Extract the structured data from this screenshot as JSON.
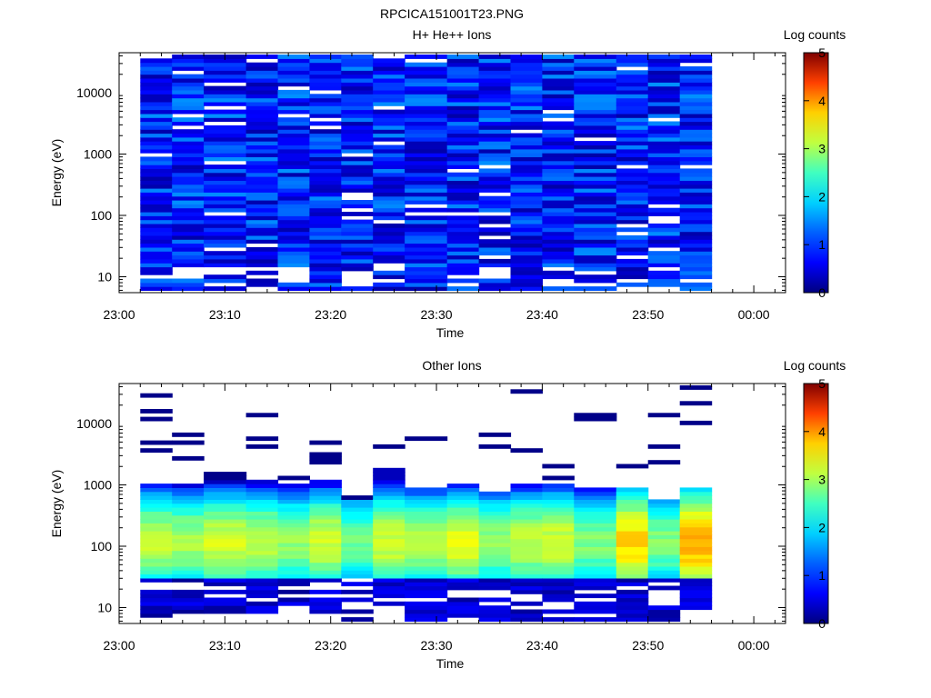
{
  "figure_title": "RPCICA151001T23.PNG",
  "colormap": [
    "#00007f",
    "#0000ff",
    "#00a0ff",
    "#00ffff",
    "#7fff7f",
    "#ffff00",
    "#ff8000",
    "#ff0000",
    "#7f0000"
  ],
  "chart_data": [
    {
      "type": "heatmap",
      "title": "H+ He++ Ions",
      "xlabel": "Time",
      "ylabel": "Energy (eV)",
      "y_scale": "log",
      "ylim": [
        5.5,
        45000
      ],
      "xlim": [
        "23:00",
        "00:03"
      ],
      "x_ticks": [
        "23:00",
        "23:10",
        "23:20",
        "23:30",
        "23:40",
        "23:50",
        "00:00"
      ],
      "y_ticks": [
        "10",
        "100",
        "1000",
        "10000"
      ],
      "colorbar_label": "Log counts",
      "colorbar_ticks": [
        "0",
        "1",
        "2",
        "3",
        "4",
        "5"
      ],
      "colorbar_range": [
        0,
        5
      ],
      "time_bins_start": [
        "23:02",
        "23:05",
        "23:08",
        "23:12",
        "23:15",
        "23:18",
        "23:21",
        "23:24",
        "23:27",
        "23:31",
        "23:34",
        "23:37",
        "23:40",
        "23:43",
        "23:47",
        "23:50",
        "23:53"
      ],
      "data_end_time": "23:56",
      "energy_range": [
        6,
        42000
      ],
      "typical_log_counts": 0.6,
      "description": "Low-level background counts (log 0-1) across all energies"
    },
    {
      "type": "heatmap",
      "title": "Other Ions",
      "xlabel": "Time",
      "ylabel": "Energy (eV)",
      "y_scale": "log",
      "ylim": [
        5.5,
        45000
      ],
      "xlim": [
        "23:00",
        "00:03"
      ],
      "x_ticks": [
        "23:00",
        "23:10",
        "23:20",
        "23:30",
        "23:40",
        "23:50",
        "00:00"
      ],
      "y_ticks": [
        "10",
        "100",
        "1000",
        "10000"
      ],
      "colorbar_label": "Log counts",
      "colorbar_ticks": [
        "0",
        "1",
        "2",
        "3",
        "4",
        "5"
      ],
      "colorbar_range": [
        0,
        5
      ],
      "time_bins_start": [
        "23:02",
        "23:05",
        "23:08",
        "23:12",
        "23:15",
        "23:18",
        "23:21",
        "23:24",
        "23:27",
        "23:31",
        "23:34",
        "23:37",
        "23:40",
        "23:43",
        "23:47",
        "23:50",
        "23:53"
      ],
      "data_end_time": "23:56",
      "peak_log_counts_by_bin": [
        2.8,
        2.7,
        2.9,
        2.8,
        2.6,
        2.9,
        2.4,
        2.9,
        2.7,
        3.0,
        2.6,
        2.8,
        2.9,
        2.5,
        3.3,
        2.5,
        3.5
      ],
      "peak_energy_ev": 120,
      "band_top_ev": [
        1100,
        1000,
        1200,
        1300,
        1100,
        1300,
        600,
        1800,
        900,
        1000,
        800,
        1100,
        1000,
        900,
        900,
        550,
        900
      ],
      "sparse_high_energy_lines_ev": [
        [
          28000,
          15000,
          12000,
          5000,
          3500
        ],
        [
          6500,
          5000,
          2900
        ],
        [
          1600,
          1400
        ],
        [
          14000,
          5500,
          4500
        ],
        [
          1400
        ],
        [
          5000,
          3000,
          2700,
          2400
        ],
        [
          600
        ],
        [
          4000
        ],
        [
          5500
        ],
        [],
        [
          7000,
          4000
        ],
        [
          33000,
          3500
        ],
        [
          2100,
          1400
        ],
        [
          14000,
          12000
        ],
        [
          2100
        ],
        [
          14000,
          4500,
          2300,
          2200
        ],
        [
          40000,
          23000,
          10500
        ]
      ]
    }
  ]
}
